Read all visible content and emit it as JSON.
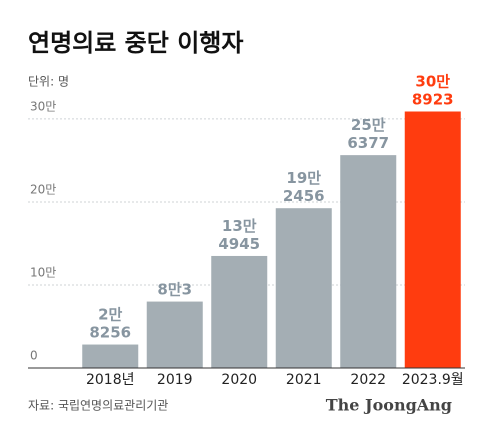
{
  "chart_data": {
    "type": "bar",
    "title": "연명의료 중단 이행자",
    "unit": "단위: 명",
    "source": "자료: 국립연명의료관리기관",
    "logo": "The JoongAng",
    "categories": [
      "2018년",
      "2019",
      "2020",
      "2021",
      "2022",
      "2023.9월"
    ],
    "values": [
      28256,
      80003,
      134945,
      192456,
      256377,
      308923
    ],
    "value_labels": [
      "2만 8256",
      "8만3",
      "13만 4945",
      "19만 2456",
      "25만 6377",
      "30만 8923"
    ],
    "colors": [
      "#a4aeb4",
      "#a4aeb4",
      "#a4aeb4",
      "#a4aeb4",
      "#a4aeb4",
      "#ff3c0f"
    ],
    "label_colors": [
      "#8795a0",
      "#8795a0",
      "#8795a0",
      "#8795a0",
      "#8795a0",
      "#ff3c0f"
    ],
    "ylim": [
      0,
      330000
    ],
    "yticks": [
      0,
      {
        "value": 100000,
        "label": "10만"
      },
      {
        "value": 200000,
        "label": "20만"
      },
      {
        "value": 300000,
        "label": "30만"
      }
    ],
    "grid": true
  }
}
